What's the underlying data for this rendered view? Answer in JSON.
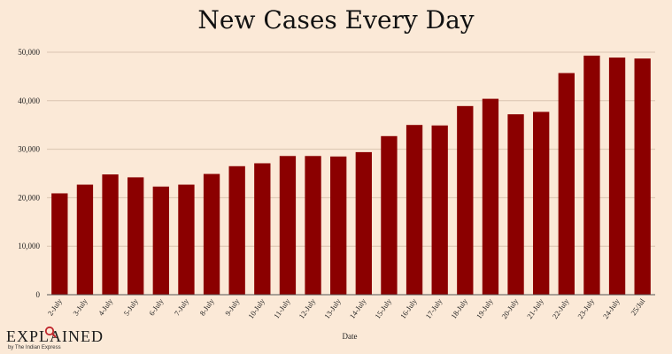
{
  "chart_data": {
    "type": "bar",
    "title": "New Cases Every Day",
    "xlabel": "Date",
    "ylabel": "",
    "ylim": [
      0,
      50000
    ],
    "yticks": [
      0,
      10000,
      20000,
      30000,
      40000,
      50000
    ],
    "ytick_labels": [
      "0",
      "10,000",
      "20,000",
      "30,000",
      "40,000",
      "50,000"
    ],
    "grid": true,
    "bar_color": "#8b0000",
    "categories": [
      "2-July",
      "3-July",
      "4-July",
      "5-July",
      "6-July",
      "7-July",
      "8-July",
      "9-July",
      "10-July",
      "11-July",
      "12-July",
      "13-July",
      "14-July",
      "15-July",
      "16-July",
      "17-July",
      "18-July",
      "19-July",
      "20-July",
      "21-July",
      "22-July",
      "23-July",
      "24-July",
      "25/Jul"
    ],
    "values": [
      20900,
      22700,
      24800,
      24200,
      22300,
      22700,
      24900,
      26500,
      27100,
      28600,
      28600,
      28500,
      29400,
      32700,
      35000,
      34900,
      38900,
      40400,
      37200,
      37700,
      45700,
      49300,
      48900,
      48700
    ]
  },
  "branding": {
    "logo_text": "EXPLAINED",
    "logo_subtext": "by The Indian Express",
    "icon": "magnifier-icon"
  },
  "colors": {
    "background": "#fbe9d7",
    "grid": "#d9c4b0",
    "axis": "#555555",
    "accent": "#c0262c"
  }
}
